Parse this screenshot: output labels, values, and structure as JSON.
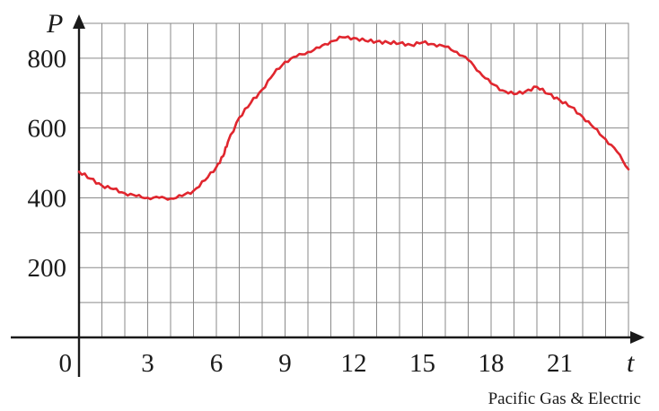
{
  "chart_data": {
    "type": "line",
    "xlabel": "t",
    "ylabel": "P",
    "xlim": [
      0,
      24
    ],
    "ylim": [
      0,
      900
    ],
    "x_grid_step": 1,
    "y_grid_step": 100,
    "x_tick_labels": [
      "0",
      "3",
      "6",
      "9",
      "12",
      "15",
      "18",
      "21"
    ],
    "x_tick_values": [
      0,
      3,
      6,
      9,
      12,
      15,
      18,
      21
    ],
    "y_tick_labels": [
      "200",
      "400",
      "600",
      "800"
    ],
    "y_tick_values": [
      200,
      400,
      600,
      800
    ],
    "grid": true,
    "line_color": "#e0262e",
    "series": [
      {
        "x": [
          0,
          0.5,
          1,
          1.5,
          2,
          2.5,
          3,
          3.5,
          4,
          4.5,
          5,
          5.5,
          6,
          6.3,
          6.5,
          7,
          7.5,
          8,
          8.5,
          9,
          9.5,
          10,
          10.5,
          11,
          11.5,
          12,
          12.5,
          13,
          13.5,
          14,
          14.5,
          15,
          15.5,
          16,
          16.5,
          17,
          17.5,
          18,
          18.5,
          19,
          19.5,
          20,
          20.5,
          21,
          21.5,
          22,
          22.5,
          23,
          23.5,
          24
        ],
        "y": [
          475,
          455,
          435,
          425,
          413,
          405,
          400,
          400,
          398,
          405,
          420,
          450,
          488,
          520,
          560,
          630,
          672,
          710,
          755,
          790,
          805,
          818,
          830,
          848,
          860,
          858,
          850,
          848,
          845,
          843,
          838,
          845,
          840,
          833,
          818,
          795,
          760,
          728,
          708,
          697,
          705,
          718,
          698,
          680,
          660,
          632,
          600,
          568,
          532,
          482
        ]
      }
    ]
  },
  "source_credit": "Pacific Gas & Electric"
}
